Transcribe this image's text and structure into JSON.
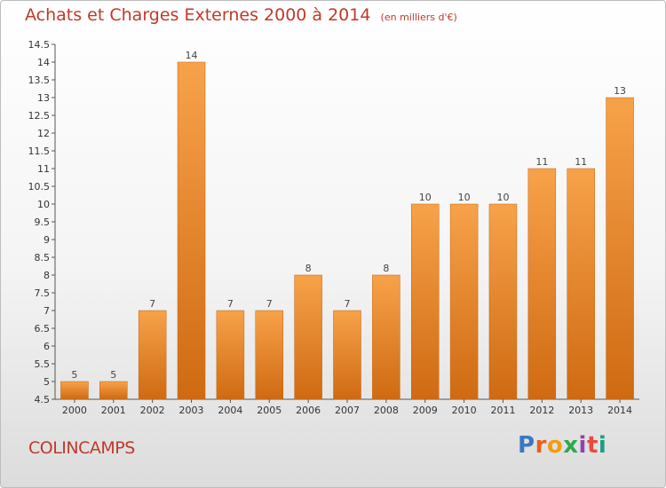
{
  "title": "Achats et Charges Externes 2000 à 2014",
  "unit_note": "(en milliers d'€)",
  "town": "COLINCAMPS",
  "logo": {
    "text": "Proxiti",
    "letter_colors": [
      "#3a78c3",
      "#e8601c",
      "#f39c12",
      "#2fa84f",
      "#8e44ad",
      "#e74c3c",
      "#16a085"
    ]
  },
  "colors": {
    "title": "#c0392b",
    "bar_top": "#f7a24a",
    "bar_bottom": "#cf6a12",
    "axis": "#555555"
  },
  "chart_data": {
    "type": "bar",
    "categories": [
      "2000",
      "2001",
      "2002",
      "2003",
      "2004",
      "2005",
      "2006",
      "2007",
      "2008",
      "2009",
      "2010",
      "2011",
      "2012",
      "2013",
      "2014"
    ],
    "values": [
      5,
      5,
      7,
      14,
      7,
      7,
      8,
      7,
      8,
      10,
      10,
      10,
      11,
      11,
      13
    ],
    "data_labels": [
      "5",
      "5",
      "7",
      "14",
      "7",
      "7",
      "8",
      "7",
      "8",
      "10",
      "10",
      "10",
      "11",
      "11",
      "13"
    ],
    "ylim": [
      4.5,
      14.5
    ],
    "yticks": [
      "4.5",
      "5",
      "5.5",
      "6",
      "6.5",
      "7",
      "7.5",
      "8",
      "8.5",
      "9",
      "9.5",
      "10",
      "10.5",
      "11",
      "11.5",
      "12",
      "12.5",
      "13",
      "13.5",
      "14",
      "14.5"
    ],
    "grid": false,
    "legend": "none"
  }
}
